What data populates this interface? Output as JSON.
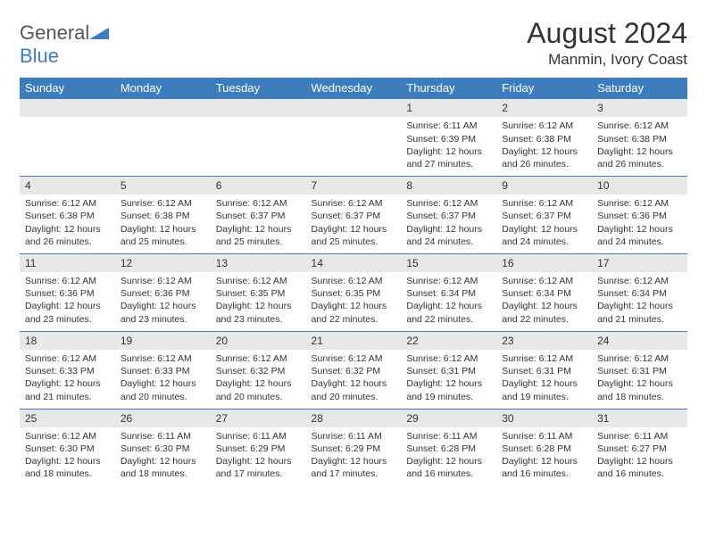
{
  "logo": {
    "word1": "General",
    "word2": "Blue"
  },
  "title": {
    "month": "August 2024",
    "location": "Manmin, Ivory Coast"
  },
  "weekdays": [
    "Sunday",
    "Monday",
    "Tuesday",
    "Wednesday",
    "Thursday",
    "Friday",
    "Saturday"
  ],
  "colors": {
    "brand": "#3d7dbd",
    "headerText": "#ffffff",
    "dayBg": "#e8e8e8",
    "text": "#333333"
  },
  "days": [
    {
      "n": "",
      "sr": "",
      "ss": "",
      "dl": ""
    },
    {
      "n": "",
      "sr": "",
      "ss": "",
      "dl": ""
    },
    {
      "n": "",
      "sr": "",
      "ss": "",
      "dl": ""
    },
    {
      "n": "",
      "sr": "",
      "ss": "",
      "dl": ""
    },
    {
      "n": "1",
      "sr": "Sunrise: 6:11 AM",
      "ss": "Sunset: 6:39 PM",
      "dl": "Daylight: 12 hours and 27 minutes."
    },
    {
      "n": "2",
      "sr": "Sunrise: 6:12 AM",
      "ss": "Sunset: 6:38 PM",
      "dl": "Daylight: 12 hours and 26 minutes."
    },
    {
      "n": "3",
      "sr": "Sunrise: 6:12 AM",
      "ss": "Sunset: 6:38 PM",
      "dl": "Daylight: 12 hours and 26 minutes."
    },
    {
      "n": "4",
      "sr": "Sunrise: 6:12 AM",
      "ss": "Sunset: 6:38 PM",
      "dl": "Daylight: 12 hours and 26 minutes."
    },
    {
      "n": "5",
      "sr": "Sunrise: 6:12 AM",
      "ss": "Sunset: 6:38 PM",
      "dl": "Daylight: 12 hours and 25 minutes."
    },
    {
      "n": "6",
      "sr": "Sunrise: 6:12 AM",
      "ss": "Sunset: 6:37 PM",
      "dl": "Daylight: 12 hours and 25 minutes."
    },
    {
      "n": "7",
      "sr": "Sunrise: 6:12 AM",
      "ss": "Sunset: 6:37 PM",
      "dl": "Daylight: 12 hours and 25 minutes."
    },
    {
      "n": "8",
      "sr": "Sunrise: 6:12 AM",
      "ss": "Sunset: 6:37 PM",
      "dl": "Daylight: 12 hours and 24 minutes."
    },
    {
      "n": "9",
      "sr": "Sunrise: 6:12 AM",
      "ss": "Sunset: 6:37 PM",
      "dl": "Daylight: 12 hours and 24 minutes."
    },
    {
      "n": "10",
      "sr": "Sunrise: 6:12 AM",
      "ss": "Sunset: 6:36 PM",
      "dl": "Daylight: 12 hours and 24 minutes."
    },
    {
      "n": "11",
      "sr": "Sunrise: 6:12 AM",
      "ss": "Sunset: 6:36 PM",
      "dl": "Daylight: 12 hours and 23 minutes."
    },
    {
      "n": "12",
      "sr": "Sunrise: 6:12 AM",
      "ss": "Sunset: 6:36 PM",
      "dl": "Daylight: 12 hours and 23 minutes."
    },
    {
      "n": "13",
      "sr": "Sunrise: 6:12 AM",
      "ss": "Sunset: 6:35 PM",
      "dl": "Daylight: 12 hours and 23 minutes."
    },
    {
      "n": "14",
      "sr": "Sunrise: 6:12 AM",
      "ss": "Sunset: 6:35 PM",
      "dl": "Daylight: 12 hours and 22 minutes."
    },
    {
      "n": "15",
      "sr": "Sunrise: 6:12 AM",
      "ss": "Sunset: 6:34 PM",
      "dl": "Daylight: 12 hours and 22 minutes."
    },
    {
      "n": "16",
      "sr": "Sunrise: 6:12 AM",
      "ss": "Sunset: 6:34 PM",
      "dl": "Daylight: 12 hours and 22 minutes."
    },
    {
      "n": "17",
      "sr": "Sunrise: 6:12 AM",
      "ss": "Sunset: 6:34 PM",
      "dl": "Daylight: 12 hours and 21 minutes."
    },
    {
      "n": "18",
      "sr": "Sunrise: 6:12 AM",
      "ss": "Sunset: 6:33 PM",
      "dl": "Daylight: 12 hours and 21 minutes."
    },
    {
      "n": "19",
      "sr": "Sunrise: 6:12 AM",
      "ss": "Sunset: 6:33 PM",
      "dl": "Daylight: 12 hours and 20 minutes."
    },
    {
      "n": "20",
      "sr": "Sunrise: 6:12 AM",
      "ss": "Sunset: 6:32 PM",
      "dl": "Daylight: 12 hours and 20 minutes."
    },
    {
      "n": "21",
      "sr": "Sunrise: 6:12 AM",
      "ss": "Sunset: 6:32 PM",
      "dl": "Daylight: 12 hours and 20 minutes."
    },
    {
      "n": "22",
      "sr": "Sunrise: 6:12 AM",
      "ss": "Sunset: 6:31 PM",
      "dl": "Daylight: 12 hours and 19 minutes."
    },
    {
      "n": "23",
      "sr": "Sunrise: 6:12 AM",
      "ss": "Sunset: 6:31 PM",
      "dl": "Daylight: 12 hours and 19 minutes."
    },
    {
      "n": "24",
      "sr": "Sunrise: 6:12 AM",
      "ss": "Sunset: 6:31 PM",
      "dl": "Daylight: 12 hours and 18 minutes."
    },
    {
      "n": "25",
      "sr": "Sunrise: 6:12 AM",
      "ss": "Sunset: 6:30 PM",
      "dl": "Daylight: 12 hours and 18 minutes."
    },
    {
      "n": "26",
      "sr": "Sunrise: 6:11 AM",
      "ss": "Sunset: 6:30 PM",
      "dl": "Daylight: 12 hours and 18 minutes."
    },
    {
      "n": "27",
      "sr": "Sunrise: 6:11 AM",
      "ss": "Sunset: 6:29 PM",
      "dl": "Daylight: 12 hours and 17 minutes."
    },
    {
      "n": "28",
      "sr": "Sunrise: 6:11 AM",
      "ss": "Sunset: 6:29 PM",
      "dl": "Daylight: 12 hours and 17 minutes."
    },
    {
      "n": "29",
      "sr": "Sunrise: 6:11 AM",
      "ss": "Sunset: 6:28 PM",
      "dl": "Daylight: 12 hours and 16 minutes."
    },
    {
      "n": "30",
      "sr": "Sunrise: 6:11 AM",
      "ss": "Sunset: 6:28 PM",
      "dl": "Daylight: 12 hours and 16 minutes."
    },
    {
      "n": "31",
      "sr": "Sunrise: 6:11 AM",
      "ss": "Sunset: 6:27 PM",
      "dl": "Daylight: 12 hours and 16 minutes."
    }
  ]
}
